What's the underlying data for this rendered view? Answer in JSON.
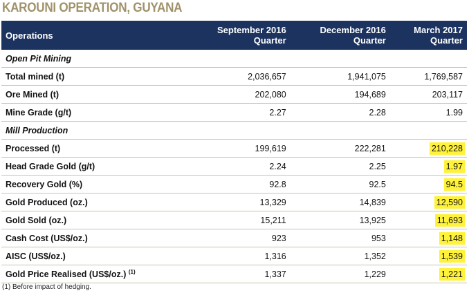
{
  "title": "KAROUNI OPERATION, GUYANA",
  "columns": [
    "Operations",
    "September 2016 Quarter",
    "December 2016 Quarter",
    "March 2017 Quarter"
  ],
  "column_lines": [
    [
      "Operations",
      ""
    ],
    [
      "September 2016",
      "Quarter"
    ],
    [
      "December 2016",
      "Quarter"
    ],
    [
      "March 2017",
      "Quarter"
    ]
  ],
  "rows": [
    {
      "section": "Open Pit Mining"
    },
    {
      "label": "Total mined (t)",
      "values": [
        "2,036,657",
        "1,941,075",
        "1,769,587"
      ]
    },
    {
      "label": "Ore Mined (t)",
      "values": [
        "202,080",
        "194,689",
        "203,117"
      ]
    },
    {
      "label": "Mine Grade (g/t)",
      "values": [
        "2.27",
        "2.28",
        "1.99"
      ]
    },
    {
      "section": "Mill Production"
    },
    {
      "label": "Processed (t)",
      "values": [
        "199,619",
        "222,281",
        "210,228"
      ],
      "highlight": true
    },
    {
      "label": "Head Grade Gold (g/t)",
      "values": [
        "2.24",
        "2.25",
        "1.97"
      ],
      "highlight": true
    },
    {
      "label": "Recovery Gold (%)",
      "values": [
        "92.8",
        "92.5",
        "94.5"
      ],
      "highlight": true
    },
    {
      "label": "Gold Produced (oz.)",
      "values": [
        "13,329",
        "14,839",
        "12,590"
      ],
      "highlight": true
    },
    {
      "label": "Gold Sold (oz.)",
      "values": [
        "15,211",
        "13,925",
        "11,693"
      ],
      "highlight": true
    },
    {
      "label": "Cash Cost (US$/oz.)",
      "values": [
        "923",
        "953",
        "1,148"
      ],
      "highlight": true
    },
    {
      "label": "AISC (US$/oz.)",
      "values": [
        "1,316",
        "1,352",
        "1,539"
      ],
      "highlight": true
    },
    {
      "label": "Gold Price Realised (US$/oz.)",
      "sup": "(1)",
      "values": [
        "1,337",
        "1,229",
        "1,221"
      ],
      "highlight": true
    }
  ],
  "footnote": "(1) Before impact of hedging.",
  "colors": {
    "header": "#1c3360",
    "title": "#a0926a",
    "highlight": "#fff23a"
  }
}
